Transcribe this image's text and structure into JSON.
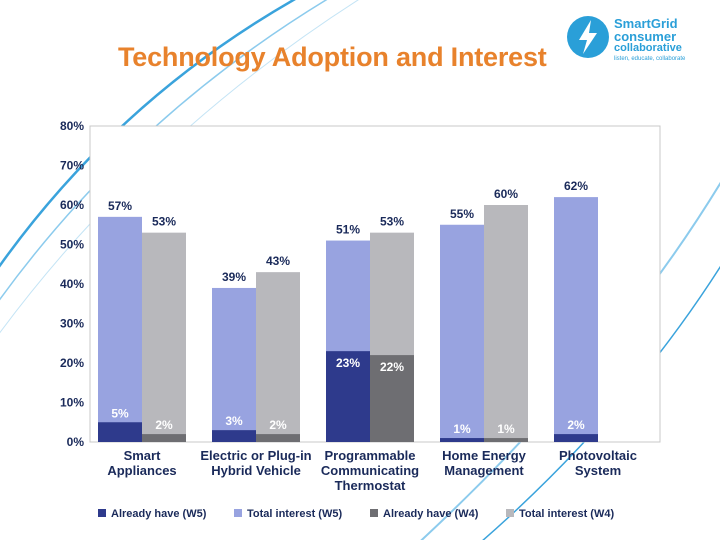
{
  "title": "Technology Adoption and Interest",
  "logo": {
    "line1": "SmartGrid",
    "line2": "consumer",
    "line3": "collaborative",
    "tagline": "listen, educate, collaborate",
    "icon": "lightning-bolt-icon",
    "color": "#2a9fd8"
  },
  "colors": {
    "already_w5": "#2e3a8c",
    "total_w5": "#98a3e0",
    "already_w4": "#6e6e72",
    "total_w4": "#b8b8bc",
    "title": "#e8822c",
    "label": "#1a2a5a"
  },
  "chart_data": {
    "type": "bar",
    "categories": [
      [
        "Smart",
        "Appliances"
      ],
      [
        "Electric or Plug-in",
        "Hybrid Vehicle"
      ],
      [
        "Programmable",
        "Communicating",
        "Thermostat"
      ],
      [
        "Home Energy",
        "Management"
      ],
      [
        "Photovoltaic",
        "System"
      ]
    ],
    "series": [
      {
        "name": "Already have (W5)",
        "values": [
          5,
          3,
          23,
          1,
          2
        ]
      },
      {
        "name": "Total interest (W5)",
        "values": [
          57,
          39,
          51,
          55,
          62
        ]
      },
      {
        "name": "Already have (W4)",
        "values": [
          2,
          2,
          22,
          1,
          null
        ]
      },
      {
        "name": "Total interest (W4)",
        "values": [
          53,
          43,
          53,
          60,
          null
        ]
      }
    ],
    "yticks": [
      "0%",
      "10%",
      "20%",
      "30%",
      "40%",
      "50%",
      "60%",
      "70%",
      "80%"
    ],
    "ylim": [
      0,
      80
    ],
    "grid": false,
    "legend": "bottom"
  }
}
